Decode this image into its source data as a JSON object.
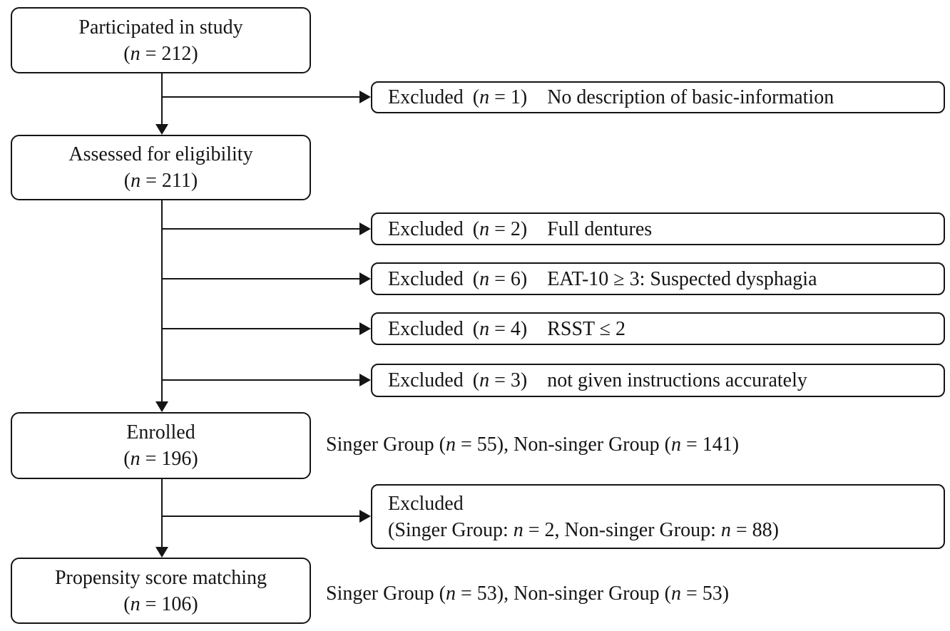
{
  "theme": {
    "ink": "#151515",
    "paper": "#ffffff"
  },
  "flow": {
    "boxes": {
      "participated": {
        "line1": "Participated in study",
        "line2": "(n = 212)"
      },
      "assessed": {
        "line1": "Assessed for eligibility",
        "line2": "(n = 211)"
      },
      "enrolled": {
        "line1": "Enrolled",
        "line2": "(n = 196)"
      },
      "propensity": {
        "line1": "Propensity score matching",
        "line2": "(n = 106)"
      }
    },
    "exclusions": [
      {
        "label": "Excluded",
        "n": "(n = 1)",
        "reason": "No description of basic-information"
      },
      {
        "label": "Excluded",
        "n": "(n = 2)",
        "reason": "Full dentures"
      },
      {
        "label": "Excluded",
        "n": "(n = 6)",
        "reason": "EAT-10 ≥ 3: Suspected dysphagia"
      },
      {
        "label": "Excluded",
        "n": "(n = 4)",
        "reason": "RSST ≤ 2"
      },
      {
        "label": "Excluded",
        "n": "(n = 3)",
        "reason": "not given instructions accurately"
      }
    ],
    "group_exclusion": {
      "line1": "Excluded",
      "line2": "(Singer Group: n = 2, Non-singer Group: n = 88)"
    },
    "notes": {
      "enrolled": "Singer Group (n = 55), Non-singer Group (n = 141)",
      "propensity": "Singer Group (n = 53), Non-singer Group (n = 53)"
    }
  }
}
